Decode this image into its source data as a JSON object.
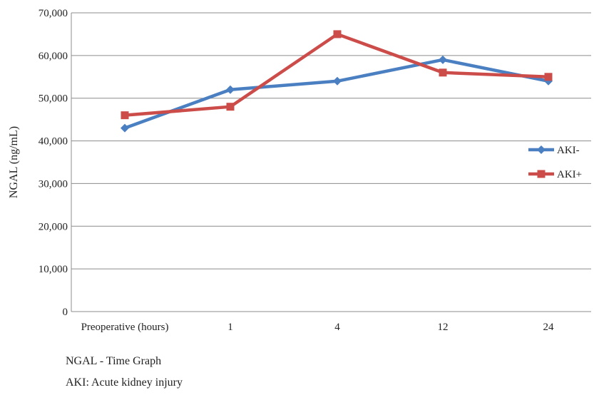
{
  "chart_data": {
    "type": "line",
    "categories": [
      "Preoperative (hours)",
      "1",
      "4",
      "12",
      "24"
    ],
    "series": [
      {
        "name": "AKI-",
        "values": [
          43000,
          52000,
          54000,
          59000,
          54000
        ],
        "color": "#4a7fc1",
        "marker": "diamond"
      },
      {
        "name": "AKI+",
        "values": [
          46000,
          48000,
          65000,
          56000,
          55000
        ],
        "color": "#cc4c4a",
        "marker": "square"
      }
    ],
    "ylabel": "NGAL (ng/mL)",
    "xlabel": "",
    "ylim": [
      0,
      70000
    ],
    "yticks": [
      0,
      10000,
      20000,
      30000,
      40000,
      50000,
      60000,
      70000
    ],
    "ytick_labels": [
      "0",
      "10,000",
      "20,000",
      "30,000",
      "40,000",
      "50,000",
      "60,000",
      "70,000"
    ],
    "grid": "horizontal",
    "legend_position": "right"
  },
  "captions": {
    "line1": "NGAL -  Time Graph",
    "line2": "AKI: Acute kidney injury"
  }
}
